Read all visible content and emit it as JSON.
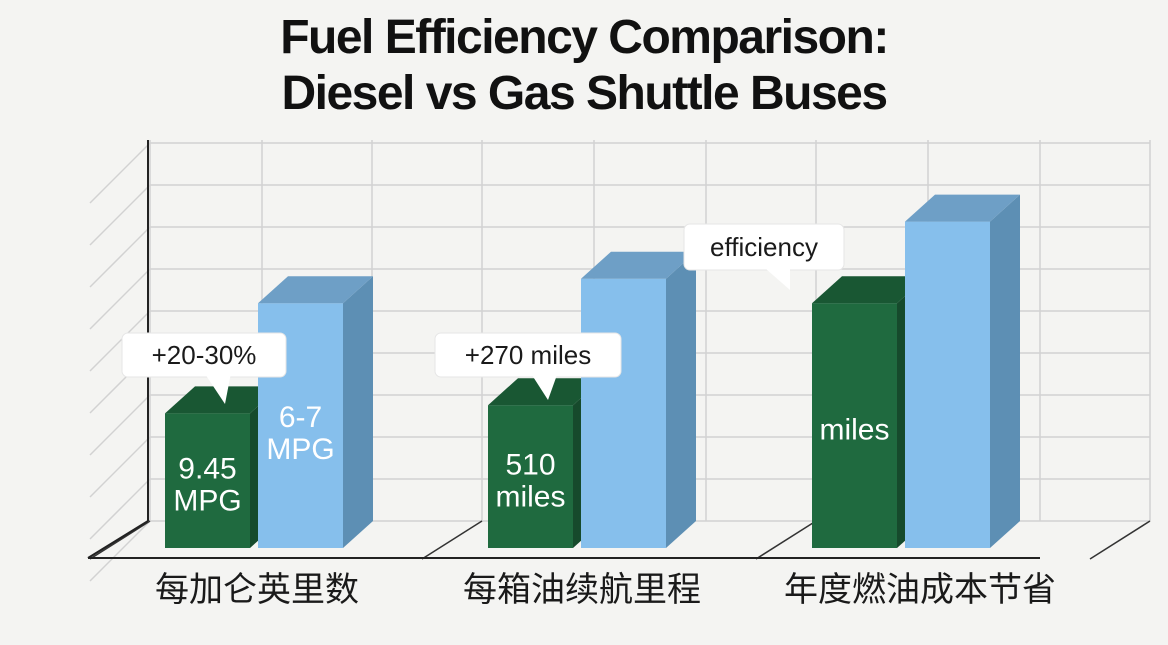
{
  "title_line1": "Fuel Efficiency Comparison:",
  "title_line2": "Diesel vs Gas Shuttle Buses",
  "colors": {
    "diesel_front": "#1f6a3f",
    "diesel_side": "#164a2c",
    "diesel_top": "#195733",
    "gas_front": "#86bfec",
    "gas_side": "#5d8fb4",
    "gas_top": "#6e9fc6",
    "grid": "#d2d2d2",
    "background": "#f4f4f2"
  },
  "chart_data": {
    "type": "bar",
    "categories": [
      "每加仑英里数",
      "每箱油续航里程",
      "年度燃油成本节省"
    ],
    "series": [
      {
        "key": "diesel",
        "values": [
          33,
          35,
          60
        ],
        "labels": [
          "9.45\nMPG",
          "510\nmiles",
          "miles"
        ]
      },
      {
        "key": "gas",
        "values": [
          60,
          66,
          80
        ],
        "labels": [
          "6-7\nMPG",
          "",
          ""
        ]
      }
    ],
    "callouts": [
      {
        "text": "+20-30%",
        "category": 0
      },
      {
        "text": "+270 miles",
        "category": 1
      },
      {
        "text": "efficiency",
        "category": 2
      }
    ],
    "ylim": [
      0,
      100
    ],
    "grid": true,
    "style": "3d"
  }
}
